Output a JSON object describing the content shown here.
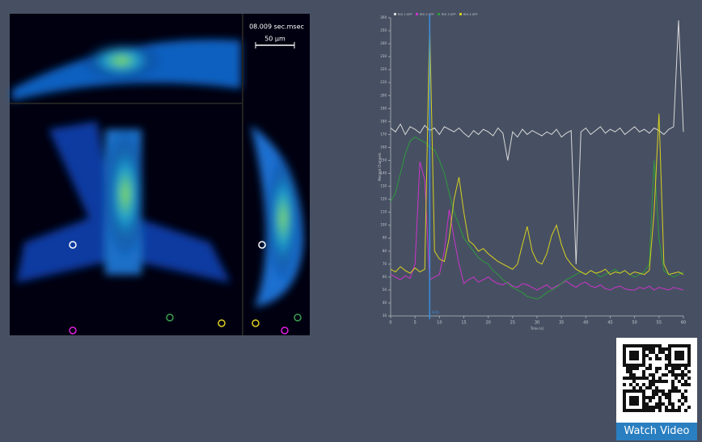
{
  "image": {
    "timestamp": "08.009 sec.msec",
    "scale_bar": "50 µm"
  },
  "video_link": "Watch Video",
  "chart_data": {
    "type": "line",
    "xlabel": "Time (s)",
    "ylabel": "Merged Channels",
    "x": [
      0,
      1,
      2,
      3,
      4,
      5,
      6,
      7,
      8,
      9,
      10,
      11,
      12,
      13,
      14,
      15,
      16,
      17,
      18,
      19,
      20,
      21,
      22,
      23,
      24,
      25,
      26,
      27,
      28,
      29,
      30,
      31,
      32,
      33,
      34,
      35,
      36,
      37,
      38,
      39,
      40,
      41,
      42,
      43,
      44,
      45,
      46,
      47,
      48,
      49,
      50,
      51,
      52,
      53,
      54,
      55,
      56,
      57,
      58,
      59,
      60
    ],
    "xlim": [
      0,
      60
    ],
    "xticks": [
      0,
      5,
      10,
      15,
      20,
      25,
      30,
      35,
      40,
      45,
      50,
      55,
      60
    ],
    "ylim": [
      30,
      260
    ],
    "yticks": [
      30,
      40,
      50,
      60,
      70,
      80,
      90,
      100,
      110,
      120,
      130,
      140,
      150,
      160,
      170,
      180,
      190,
      200,
      210,
      220,
      230,
      240,
      250,
      260
    ],
    "cursor": 8.01,
    "series": [
      {
        "name": "ROI 1 GFP",
        "color": "#d8d8d8",
        "values": [
          175,
          172,
          178,
          170,
          176,
          174,
          171,
          177,
          173,
          175,
          170,
          176,
          174,
          172,
          175,
          171,
          168,
          173,
          170,
          174,
          172,
          169,
          175,
          171,
          150,
          172,
          168,
          174,
          170,
          173,
          171,
          169,
          172,
          170,
          174,
          168,
          171,
          173,
          70,
          172,
          175,
          170,
          173,
          176,
          171,
          174,
          172,
          175,
          170,
          173,
          176,
          172,
          174,
          171,
          175,
          173,
          170,
          174,
          176,
          258,
          172
        ]
      },
      {
        "name": "ROI 2 GFP",
        "color": "#cc33cc",
        "values": [
          62,
          60,
          58,
          61,
          59,
          70,
          149,
          135,
          58,
          60,
          62,
          80,
          112,
          90,
          70,
          55,
          58,
          60,
          56,
          58,
          60,
          57,
          55,
          54,
          56,
          53,
          52,
          55,
          54,
          52,
          50,
          52,
          54,
          51,
          53,
          55,
          57,
          54,
          52,
          55,
          56,
          53,
          52,
          54,
          51,
          50,
          52,
          53,
          51,
          50,
          50,
          52,
          51,
          53,
          50,
          52,
          51,
          50,
          52,
          51,
          50
        ]
      },
      {
        "name": "ROI 3 GFP",
        "color": "#2e9a3e",
        "values": [
          118,
          125,
          140,
          155,
          165,
          168,
          166,
          164,
          160,
          158,
          150,
          140,
          125,
          110,
          100,
          90,
          85,
          80,
          75,
          72,
          70,
          65,
          62,
          58,
          55,
          52,
          50,
          48,
          45,
          44,
          43,
          45,
          48,
          50,
          52,
          55,
          58,
          60,
          62,
          64,
          62,
          65,
          63,
          60,
          62,
          64,
          66,
          63,
          65,
          62,
          60,
          62,
          64,
          70,
          150,
          90,
          65,
          62,
          60,
          62,
          64
        ]
      },
      {
        "name": "ROI 4 GFP",
        "color": "#d8d020",
        "values": [
          66,
          64,
          68,
          65,
          63,
          67,
          64,
          66,
          255,
          80,
          74,
          72,
          90,
          120,
          137,
          110,
          88,
          85,
          80,
          82,
          78,
          75,
          72,
          70,
          68,
          66,
          70,
          85,
          99,
          80,
          72,
          70,
          78,
          92,
          100,
          85,
          75,
          70,
          66,
          64,
          62,
          65,
          63,
          64,
          66,
          62,
          64,
          63,
          65,
          62,
          64,
          63,
          62,
          65,
          110,
          186,
          70,
          62,
          63,
          64,
          62
        ]
      }
    ]
  }
}
